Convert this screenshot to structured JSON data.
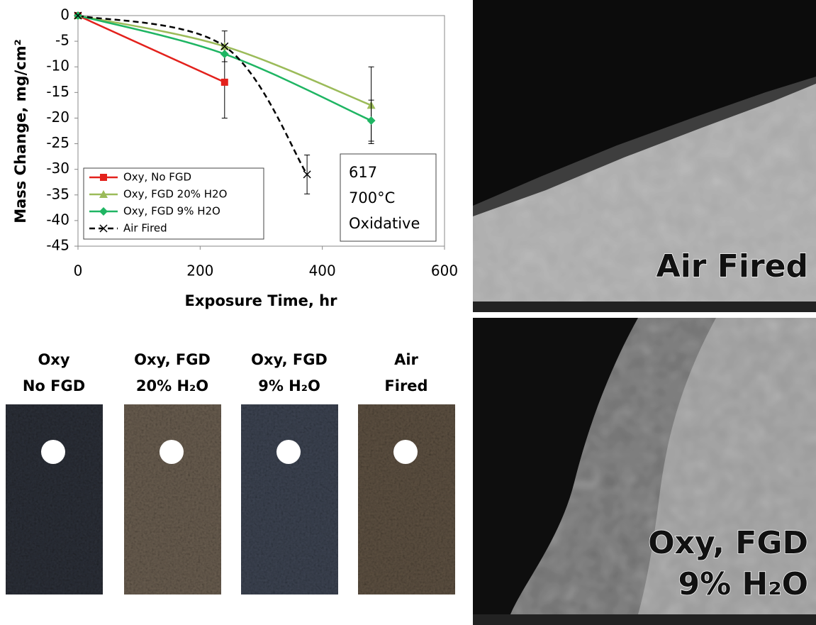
{
  "chart_data": {
    "type": "line",
    "x_label": "Exposure Time, hr",
    "y_label": "Mass Change, mg/cm²",
    "xlim": [
      0,
      600
    ],
    "xticks": [
      0,
      200,
      400,
      600
    ],
    "ylim": [
      -45,
      0
    ],
    "yticks": [
      0,
      -5,
      -10,
      -15,
      -20,
      -25,
      -30,
      -35,
      -40,
      -45
    ],
    "smooth": true,
    "series": [
      {
        "name": "Oxy, No FGD",
        "color": "#e3211c",
        "marker": "square",
        "dash": false,
        "x": [
          0,
          240
        ],
        "values": [
          0,
          -13
        ],
        "errors": [
          null,
          7
        ]
      },
      {
        "name": "Oxy, FGD 20% H2O",
        "color": "#9bbb59",
        "marker": "triangle",
        "dash": false,
        "x": [
          0,
          240,
          480
        ],
        "values": [
          0,
          -6,
          -17.5
        ],
        "errors": [
          null,
          3,
          7.5
        ]
      },
      {
        "name": "Oxy, FGD 9% H2O",
        "color": "#1fb563",
        "marker": "diamond",
        "dash": false,
        "x": [
          0,
          240,
          480
        ],
        "values": [
          0,
          -7.5,
          -20.5
        ],
        "errors": [
          null,
          null,
          4
        ]
      },
      {
        "name": "Air Fired",
        "color": "#000000",
        "marker": "x",
        "dash": true,
        "x": [
          0,
          240,
          375
        ],
        "values": [
          0,
          -6,
          -31
        ],
        "errors": [
          null,
          null,
          3.8
        ]
      }
    ],
    "annotation": [
      "617",
      "700°C",
      "Oxidative"
    ]
  },
  "samples": [
    {
      "line1": "Oxy",
      "line2": "No FGD"
    },
    {
      "line1": "Oxy, FGD",
      "line2": "20% H₂O"
    },
    {
      "line1": "Oxy, FGD",
      "line2": "9% H₂O"
    },
    {
      "line1": "Air",
      "line2": "Fired"
    }
  ],
  "micrographs": [
    {
      "label": [
        "Air Fired"
      ]
    },
    {
      "label": [
        "Oxy, FGD",
        "9% H₂O"
      ]
    }
  ]
}
